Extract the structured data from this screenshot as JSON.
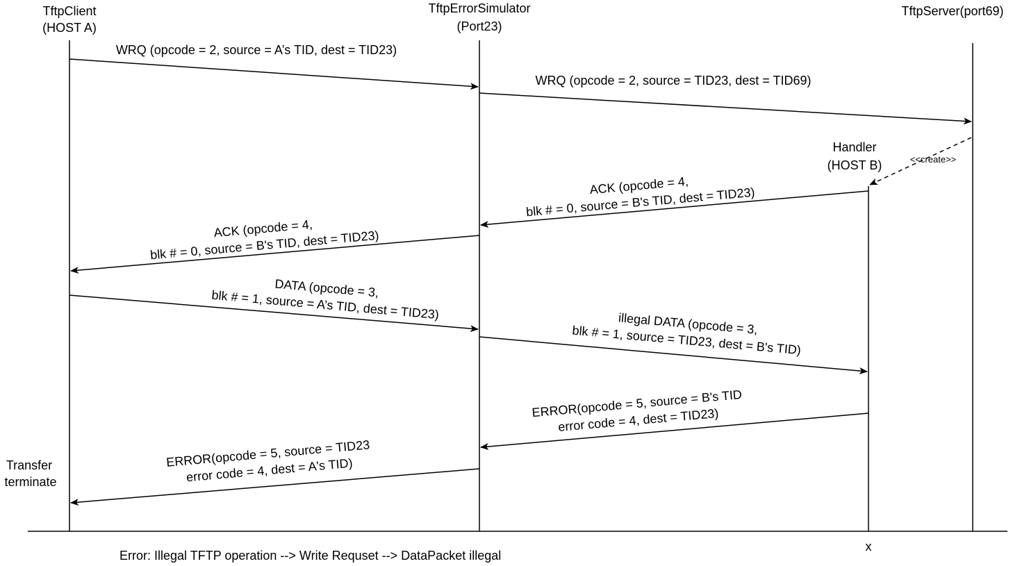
{
  "diagram": {
    "actors": {
      "client": {
        "name": "TftpClient",
        "host": "(HOST A)"
      },
      "simulator": {
        "name": "TftpErrorSimulator",
        "host": "(Port23)"
      },
      "server": {
        "name": "TftpServer(port69)"
      },
      "handler": {
        "name": "Handler",
        "host": "(HOST B)"
      }
    },
    "create_label": "<<create>>",
    "messages": {
      "wrq1": "WRQ  (opcode = 2, source = A’s TID, dest = TID23)",
      "wrq2": "WRQ  (opcode = 2, source = TID23, dest = TID69)",
      "ack1": [
        "ACK (opcode = 4,",
        "blk # = 0, source = B's TID, dest = TID23)"
      ],
      "ack2": [
        "ACK (opcode = 4,",
        "blk # = 0, source = B's TID, dest = TID23)"
      ],
      "data1": [
        "DATA  (opcode = 3,",
        "blk # = 1, source = A’s TID, dest = TID23)"
      ],
      "data2": [
        "illegal DATA  (opcode = 3,",
        "blk # = 1, source = TID23, dest = B's TID)"
      ],
      "error1": [
        "ERROR(opcode = 5, source = B's TID",
        "error code = 4, dest = TID23)"
      ],
      "error2": [
        "ERROR(opcode = 5, source = TID23",
        "error code = 4, dest = A's TID)"
      ]
    },
    "notes": {
      "transfer": [
        "Transfer",
        "terminate"
      ],
      "terminate_mark": "x"
    },
    "footer": "Error: Illegal TFTP operation --> Write Requset --> DataPacket illegal"
  }
}
